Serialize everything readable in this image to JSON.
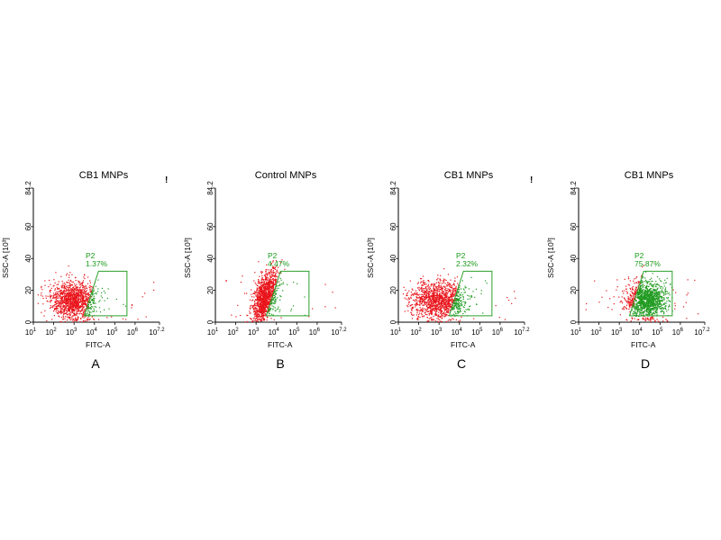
{
  "chart_data": [
    {
      "type": "scatter",
      "title": "CB1 MNPs",
      "panel_label": "A",
      "xlabel": "FITC-A",
      "ylabel": "SSC-A [10³]",
      "xscale": "log",
      "xlim_log10": [
        1,
        7.2
      ],
      "x_ticks": [
        "10^1",
        "10^2",
        "10^3",
        "10^4",
        "10^5",
        "10^6",
        "10^7.2"
      ],
      "ylim": [
        0,
        84.2
      ],
      "y_ticks": [
        "0",
        "20",
        "40",
        "60",
        "84.2"
      ],
      "colors": {
        "outside_gate": "#e8141a",
        "inside_gate": "#1f9a1f",
        "gate": "#2ca02c"
      },
      "population": {
        "center_log10_fitc": 2.95,
        "center_ssc": 14,
        "spread_log10": 0.55,
        "spread_ssc": 6
      },
      "gate": {
        "name": "P2",
        "percent_label": "1.37%",
        "percent": 1.37,
        "log10_fitc_bottom": [
          3.5,
          5.6
        ],
        "log10_fitc_top": [
          4.2,
          5.6
        ],
        "ssc_range": [
          4,
          32
        ]
      },
      "top_right_mark": "!"
    },
    {
      "type": "scatter",
      "title": "Control MNPs",
      "panel_label": "B",
      "xlabel": "FITC-A",
      "ylabel": "SSC-A [10³]",
      "xscale": "log",
      "xlim_log10": [
        1,
        7.2
      ],
      "x_ticks": [
        "10^1",
        "10^2",
        "10^3",
        "10^4",
        "10^5",
        "10^6",
        "10^7.2"
      ],
      "ylim": [
        0,
        84.2
      ],
      "y_ticks": [
        "0",
        "20",
        "40",
        "60",
        "84.2"
      ],
      "colors": {
        "outside_gate": "#e8141a",
        "inside_gate": "#1f9a1f",
        "gate": "#2ca02c"
      },
      "population": {
        "center_log10_fitc": 3.4,
        "center_ssc": 16,
        "spread_log10": 0.3,
        "spread_ssc": 7,
        "tilt": 9
      },
      "gate": {
        "name": "P2",
        "percent_label": "4.47%",
        "percent": 4.47,
        "log10_fitc_bottom": [
          3.5,
          5.6
        ],
        "log10_fitc_top": [
          4.2,
          5.6
        ],
        "ssc_range": [
          4,
          32
        ]
      },
      "top_right_mark": ""
    },
    {
      "type": "scatter",
      "title": "CB1 MNPs",
      "panel_label": "C",
      "xlabel": "FITC-A",
      "ylabel": "SSC-A [10³]",
      "xscale": "log",
      "xlim_log10": [
        1,
        7.2
      ],
      "x_ticks": [
        "10^1",
        "10^2",
        "10^3",
        "10^4",
        "10^5",
        "10^6",
        "10^7.2"
      ],
      "ylim": [
        0,
        84.2
      ],
      "y_ticks": [
        "0",
        "20",
        "40",
        "60",
        "84.2"
      ],
      "colors": {
        "outside_gate": "#e8141a",
        "inside_gate": "#1f9a1f",
        "gate": "#2ca02c"
      },
      "population": {
        "center_log10_fitc": 3.0,
        "center_ssc": 14,
        "spread_log10": 0.65,
        "spread_ssc": 6
      },
      "gate": {
        "name": "P2",
        "percent_label": "2.32%",
        "percent": 2.32,
        "log10_fitc_bottom": [
          3.5,
          5.6
        ],
        "log10_fitc_top": [
          4.2,
          5.6
        ],
        "ssc_range": [
          4,
          32
        ]
      },
      "top_right_mark": "!"
    },
    {
      "type": "scatter",
      "title": "CB1 MNPs",
      "panel_label": "D",
      "xlabel": "FITC-A",
      "ylabel": "SSC-A [10³]",
      "xscale": "log",
      "xlim_log10": [
        1,
        7.2
      ],
      "x_ticks": [
        "10^1",
        "10^2",
        "10^3",
        "10^4",
        "10^5",
        "10^6",
        "10^7.2"
      ],
      "ylim": [
        0,
        84.2
      ],
      "y_ticks": [
        "0",
        "20",
        "40",
        "60",
        "84.2"
      ],
      "colors": {
        "outside_gate": "#e8141a",
        "inside_gate": "#1f9a1f",
        "gate": "#2ca02c"
      },
      "population": {
        "center_log10_fitc": 4.3,
        "center_ssc": 14,
        "spread_log10": 0.5,
        "spread_ssc": 6
      },
      "gate": {
        "name": "P2",
        "percent_label": "75.87%",
        "percent": 75.87,
        "log10_fitc_bottom": [
          3.5,
          5.6
        ],
        "log10_fitc_top": [
          4.2,
          5.6
        ],
        "ssc_range": [
          4,
          32
        ]
      },
      "top_right_mark": ""
    }
  ]
}
